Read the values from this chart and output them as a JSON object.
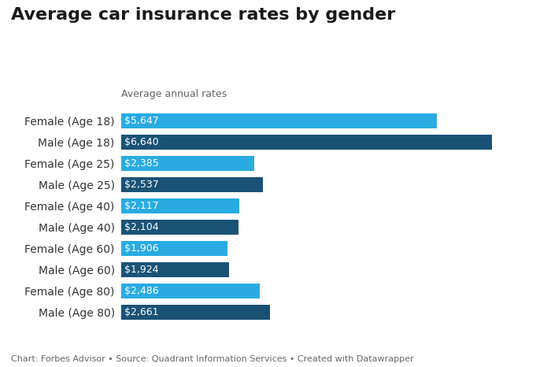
{
  "title": "Average car insurance rates by gender",
  "subtitle": "Average annual rates",
  "footer": "Chart: Forbes Advisor • Source: Quadrant Information Services • Created with Datawrapper",
  "categories": [
    "Female (Age 18)",
    "Male (Age 18)",
    "Female (Age 25)",
    "Male (Age 25)",
    "Female (Age 40)",
    "Male (Age 40)",
    "Female (Age 60)",
    "Male (Age 60)",
    "Female (Age 80)",
    "Male (Age 80)"
  ],
  "values": [
    5647,
    6640,
    2385,
    2537,
    2117,
    2104,
    1906,
    1924,
    2486,
    2661
  ],
  "labels": [
    "$5,647",
    "$6,640",
    "$2,385",
    "$2,537",
    "$2,117",
    "$2,104",
    "$1,906",
    "$1,924",
    "$2,486",
    "$2,661"
  ],
  "colors": [
    "#29abe2",
    "#1a5276",
    "#29abe2",
    "#1a5276",
    "#29abe2",
    "#1a5276",
    "#29abe2",
    "#1a5276",
    "#29abe2",
    "#1a5276"
  ],
  "background_color": "#ffffff",
  "title_fontsize": 16,
  "subtitle_fontsize": 9,
  "label_fontsize": 9,
  "ytick_fontsize": 10,
  "footer_fontsize": 8,
  "bar_height": 0.72,
  "xlim": [
    0,
    7400
  ]
}
